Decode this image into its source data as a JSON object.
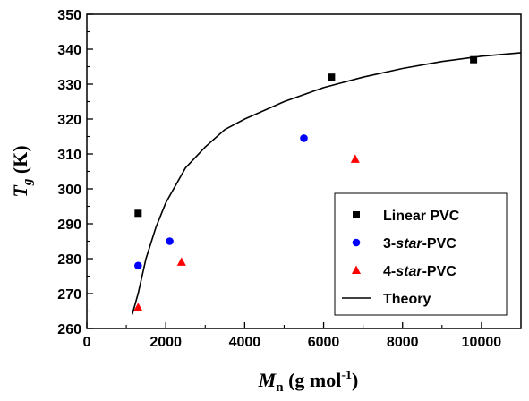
{
  "chart_data": {
    "type": "scatter",
    "title": "",
    "x_axis": {
      "label_main": "M",
      "label_sub": "n",
      "label_unit_before": " (g mol",
      "label_unit_sup": "-1",
      "label_unit_after": ")",
      "min": 0,
      "max": 11000,
      "ticks": [
        0,
        2000,
        4000,
        6000,
        8000,
        10000
      ]
    },
    "y_axis": {
      "label_main": "T",
      "label_sub": "g",
      "label_unit": " (K)",
      "min": 260,
      "max": 350,
      "ticks": [
        260,
        270,
        280,
        290,
        300,
        310,
        320,
        330,
        340,
        350
      ]
    },
    "legend": {
      "placement": "lower-right",
      "entries": [
        {
          "parts": [
            {
              "text": "Linear PVC",
              "italic": false
            }
          ],
          "marker": "square",
          "color": "#000000"
        },
        {
          "parts": [
            {
              "text": "3-",
              "italic": false
            },
            {
              "text": "star",
              "italic": true
            },
            {
              "text": "-PVC",
              "italic": false
            }
          ],
          "marker": "circle",
          "color": "#0000ff"
        },
        {
          "parts": [
            {
              "text": "4-",
              "italic": false
            },
            {
              "text": "star",
              "italic": true
            },
            {
              "text": "-PVC",
              "italic": false
            }
          ],
          "marker": "triangle",
          "color": "#ff0000"
        },
        {
          "parts": [
            {
              "text": "Theory",
              "italic": false
            }
          ],
          "marker": "line",
          "color": "#000000"
        }
      ]
    },
    "series": [
      {
        "name": "Linear PVC",
        "marker": "square",
        "color": "#000000",
        "points": [
          {
            "x": 1300,
            "y": 293
          },
          {
            "x": 6200,
            "y": 332
          },
          {
            "x": 9800,
            "y": 337
          }
        ]
      },
      {
        "name": "3-star-PVC",
        "marker": "circle",
        "color": "#0000ff",
        "points": [
          {
            "x": 1300,
            "y": 278
          },
          {
            "x": 2100,
            "y": 285
          },
          {
            "x": 5500,
            "y": 314.5
          }
        ]
      },
      {
        "name": "4-star-PVC",
        "marker": "triangle",
        "color": "#ff0000",
        "points": [
          {
            "x": 1300,
            "y": 266
          },
          {
            "x": 2400,
            "y": 279
          },
          {
            "x": 6800,
            "y": 308.5
          }
        ]
      },
      {
        "name": "Theory",
        "marker": "line",
        "color": "#000000",
        "points": [
          {
            "x": 1150,
            "y": 264
          },
          {
            "x": 1300,
            "y": 270
          },
          {
            "x": 1500,
            "y": 280
          },
          {
            "x": 1750,
            "y": 289
          },
          {
            "x": 2000,
            "y": 296
          },
          {
            "x": 2500,
            "y": 306
          },
          {
            "x": 3000,
            "y": 312
          },
          {
            "x": 3500,
            "y": 317
          },
          {
            "x": 4000,
            "y": 320
          },
          {
            "x": 5000,
            "y": 325
          },
          {
            "x": 6000,
            "y": 329
          },
          {
            "x": 7000,
            "y": 332
          },
          {
            "x": 8000,
            "y": 334.5
          },
          {
            "x": 9000,
            "y": 336.5
          },
          {
            "x": 10000,
            "y": 338
          },
          {
            "x": 11000,
            "y": 339
          }
        ]
      }
    ]
  }
}
